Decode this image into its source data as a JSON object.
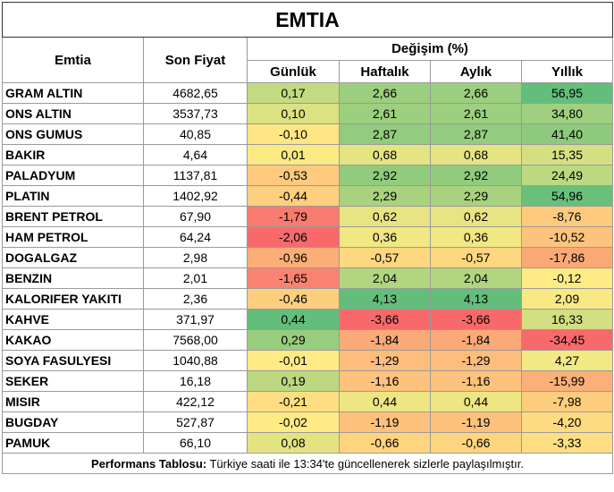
{
  "title": "EMTIA",
  "headers": {
    "emtia": "Emtia",
    "son_fiyat": "Son Fiyat",
    "degisim": "Değişim (%)",
    "gunluk": "Günlük",
    "haftalik": "Haftalık",
    "aylik": "Aylık",
    "yillik": "Yıllık"
  },
  "rows": [
    {
      "name": "GRAM ALTIN",
      "price": "4682,65",
      "gunluk": "0,17",
      "haftalik": "2,66",
      "aylik": "2,66",
      "yillik": "56,95"
    },
    {
      "name": "ONS ALTIN",
      "price": "3537,73",
      "gunluk": "0,10",
      "haftalik": "2,61",
      "aylik": "2,61",
      "yillik": "34,80"
    },
    {
      "name": "ONS GUMUS",
      "price": "40,85",
      "gunluk": "-0,10",
      "haftalik": "2,87",
      "aylik": "2,87",
      "yillik": "41,40"
    },
    {
      "name": "BAKIR",
      "price": "4,64",
      "gunluk": "0,01",
      "haftalik": "0,68",
      "aylik": "0,68",
      "yillik": "15,35"
    },
    {
      "name": "PALADYUM",
      "price": "1137,81",
      "gunluk": "-0,53",
      "haftalik": "2,92",
      "aylik": "2,92",
      "yillik": "24,49"
    },
    {
      "name": "PLATIN",
      "price": "1402,92",
      "gunluk": "-0,44",
      "haftalik": "2,29",
      "aylik": "2,29",
      "yillik": "54,96"
    },
    {
      "name": "BRENT PETROL",
      "price": "67,90",
      "gunluk": "-1,79",
      "haftalik": "0,62",
      "aylik": "0,62",
      "yillik": "-8,76"
    },
    {
      "name": "HAM PETROL",
      "price": "64,24",
      "gunluk": "-2,06",
      "haftalik": "0,36",
      "aylik": "0,36",
      "yillik": "-10,52"
    },
    {
      "name": "DOGALGAZ",
      "price": "2,98",
      "gunluk": "-0,96",
      "haftalik": "-0,57",
      "aylik": "-0,57",
      "yillik": "-17,86"
    },
    {
      "name": "BENZIN",
      "price": "2,01",
      "gunluk": "-1,65",
      "haftalik": "2,04",
      "aylik": "2,04",
      "yillik": "-0,12"
    },
    {
      "name": "KALORIFER YAKITI",
      "price": "2,36",
      "gunluk": "-0,46",
      "haftalik": "4,13",
      "aylik": "4,13",
      "yillik": "2,09"
    },
    {
      "name": "KAHVE",
      "price": "371,97",
      "gunluk": "0,44",
      "haftalik": "-3,66",
      "aylik": "-3,66",
      "yillik": "16,33"
    },
    {
      "name": "KAKAO",
      "price": "7568,00",
      "gunluk": "0,29",
      "haftalik": "-1,84",
      "aylik": "-1,84",
      "yillik": "-34,45"
    },
    {
      "name": "SOYA FASULYESI",
      "price": "1040,88",
      "gunluk": "-0,01",
      "haftalik": "-1,29",
      "aylik": "-1,29",
      "yillik": "4,27"
    },
    {
      "name": "SEKER",
      "price": "16,18",
      "gunluk": "0,19",
      "haftalik": "-1,16",
      "aylik": "-1,16",
      "yillik": "-15,99"
    },
    {
      "name": "MISIR",
      "price": "422,12",
      "gunluk": "-0,21",
      "haftalik": "0,44",
      "aylik": "0,44",
      "yillik": "-7,98"
    },
    {
      "name": "BUGDAY",
      "price": "527,87",
      "gunluk": "-0,02",
      "haftalik": "-1,19",
      "aylik": "-1,19",
      "yillik": "-4,20"
    },
    {
      "name": "PAMUK",
      "price": "66,10",
      "gunluk": "0,08",
      "haftalik": "-0,66",
      "aylik": "-0,66",
      "yillik": "-3,33"
    }
  ],
  "footer": {
    "label": "Performans Tablosu:",
    "text": " Türkiye saati ile 13:34'te güncellenerek sizlerle paylaşılmıştır."
  }
}
